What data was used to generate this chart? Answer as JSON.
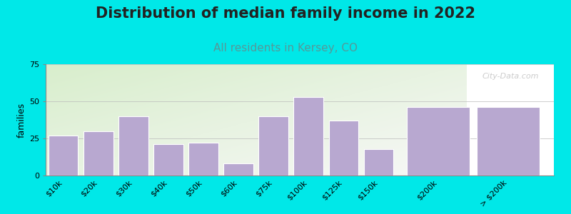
{
  "title": "Distribution of median family income in 2022",
  "subtitle": "All residents in Kersey, CO",
  "ylabel": "families",
  "categories": [
    "$10k",
    "$20k",
    "$30k",
    "$40k",
    "$50k",
    "$60k",
    "$75k",
    "$100k",
    "$125k",
    "$150k",
    "$200k",
    "> $200k"
  ],
  "values": [
    27,
    30,
    40,
    21,
    22,
    8,
    40,
    53,
    37,
    18,
    46,
    46
  ],
  "bar_color": "#b8a8d0",
  "bar_edge_color": "#ffffff",
  "ylim": [
    0,
    75
  ],
  "yticks": [
    0,
    25,
    50,
    75
  ],
  "background_color": "#00e8e8",
  "plot_bg_top_left": "#d8eecc",
  "plot_bg_bottom_right": "#f8f8f8",
  "title_fontsize": 15,
  "subtitle_fontsize": 11,
  "subtitle_color": "#559999",
  "ylabel_fontsize": 9,
  "tick_fontsize": 8,
  "watermark_text": "City-Data.com"
}
